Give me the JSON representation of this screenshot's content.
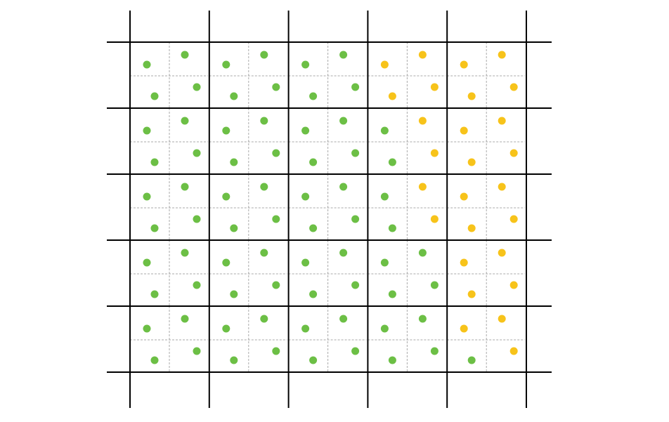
{
  "grid": {
    "rows": [
      [
        [
          "#6cbf45",
          "#6cbf45",
          "#6cbf45",
          "#6cbf45"
        ],
        [
          "#6cbf45",
          "#6cbf45",
          "#6cbf45",
          "#6cbf45"
        ],
        [
          "#6cbf45",
          "#6cbf45",
          "#6cbf45",
          "#6cbf45"
        ],
        [
          "#f7c31a",
          "#f7c31a",
          "#f7c31a",
          "#f7c31a"
        ],
        [
          "#f7c31a",
          "#f7c31a",
          "#f7c31a",
          "#f7c31a"
        ]
      ],
      [
        [
          "#6cbf45",
          "#6cbf45",
          "#6cbf45",
          "#6cbf45"
        ],
        [
          "#6cbf45",
          "#6cbf45",
          "#6cbf45",
          "#6cbf45"
        ],
        [
          "#6cbf45",
          "#6cbf45",
          "#6cbf45",
          "#6cbf45"
        ],
        [
          "#6cbf45",
          "#f7c31a",
          "#6cbf45",
          "#f7c31a"
        ],
        [
          "#f7c31a",
          "#f7c31a",
          "#f7c31a",
          "#f7c31a"
        ]
      ],
      [
        [
          "#6cbf45",
          "#6cbf45",
          "#6cbf45",
          "#6cbf45"
        ],
        [
          "#6cbf45",
          "#6cbf45",
          "#6cbf45",
          "#6cbf45"
        ],
        [
          "#6cbf45",
          "#6cbf45",
          "#6cbf45",
          "#6cbf45"
        ],
        [
          "#6cbf45",
          "#f7c31a",
          "#6cbf45",
          "#f7c31a"
        ],
        [
          "#f7c31a",
          "#f7c31a",
          "#f7c31a",
          "#f7c31a"
        ]
      ],
      [
        [
          "#6cbf45",
          "#6cbf45",
          "#6cbf45",
          "#6cbf45"
        ],
        [
          "#6cbf45",
          "#6cbf45",
          "#6cbf45",
          "#6cbf45"
        ],
        [
          "#6cbf45",
          "#6cbf45",
          "#6cbf45",
          "#6cbf45"
        ],
        [
          "#6cbf45",
          "#6cbf45",
          "#6cbf45",
          "#6cbf45"
        ],
        [
          "#f7c31a",
          "#f7c31a",
          "#f7c31a",
          "#f7c31a"
        ]
      ],
      [
        [
          "#6cbf45",
          "#6cbf45",
          "#6cbf45",
          "#6cbf45"
        ],
        [
          "#6cbf45",
          "#6cbf45",
          "#6cbf45",
          "#6cbf45"
        ],
        [
          "#6cbf45",
          "#6cbf45",
          "#6cbf45",
          "#6cbf45"
        ],
        [
          "#6cbf45",
          "#6cbf45",
          "#6cbf45",
          "#6cbf45"
        ],
        [
          "#f7c31a",
          "#f7c31a",
          "#6cbf45",
          "#f7c31a"
        ]
      ]
    ]
  }
}
